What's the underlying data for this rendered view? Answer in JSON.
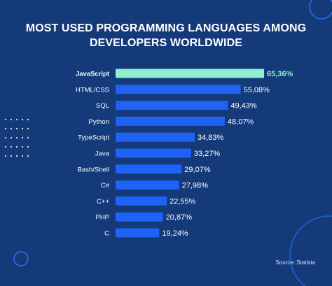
{
  "header": {
    "title_line1": "MOST USED PROGRAMMING LANGUAGES AMONG",
    "title_line2": "DEVELOPERS WORLDWIDE"
  },
  "source": "Source: Statista",
  "colors": {
    "background": "#143a7a",
    "bar": "#1e63f5",
    "highlight_bar": "#8ef0cf",
    "highlight_label": "#8ef0cf",
    "text": "#ffffff"
  },
  "chart_data": {
    "type": "bar",
    "orientation": "horizontal",
    "title": "MOST USED PROGRAMMING LANGUAGES AMONG DEVELOPERS WORLDWIDE",
    "categories": [
      "JavaScript",
      "HTML/CSS",
      "SQL",
      "Python",
      "TypeScript",
      "Java",
      "Bash/Shell",
      "C#",
      "C++",
      "PHP",
      "C"
    ],
    "values": [
      65.36,
      55.08,
      49.43,
      48.07,
      34.83,
      33.27,
      29.07,
      27.98,
      22.55,
      20.87,
      19.24
    ],
    "value_labels": [
      "65,36%",
      "55,08%",
      "49,43%",
      "48,07%",
      "34,83%",
      "33,27%",
      "29,07%",
      "27,98%",
      "22,55%",
      "20,87%",
      "19,24%"
    ],
    "highlight": "JavaScript",
    "xlabel": "",
    "ylabel": "",
    "unit": "%",
    "xlim": [
      0,
      65.36
    ],
    "grid": false,
    "legend": "none"
  }
}
